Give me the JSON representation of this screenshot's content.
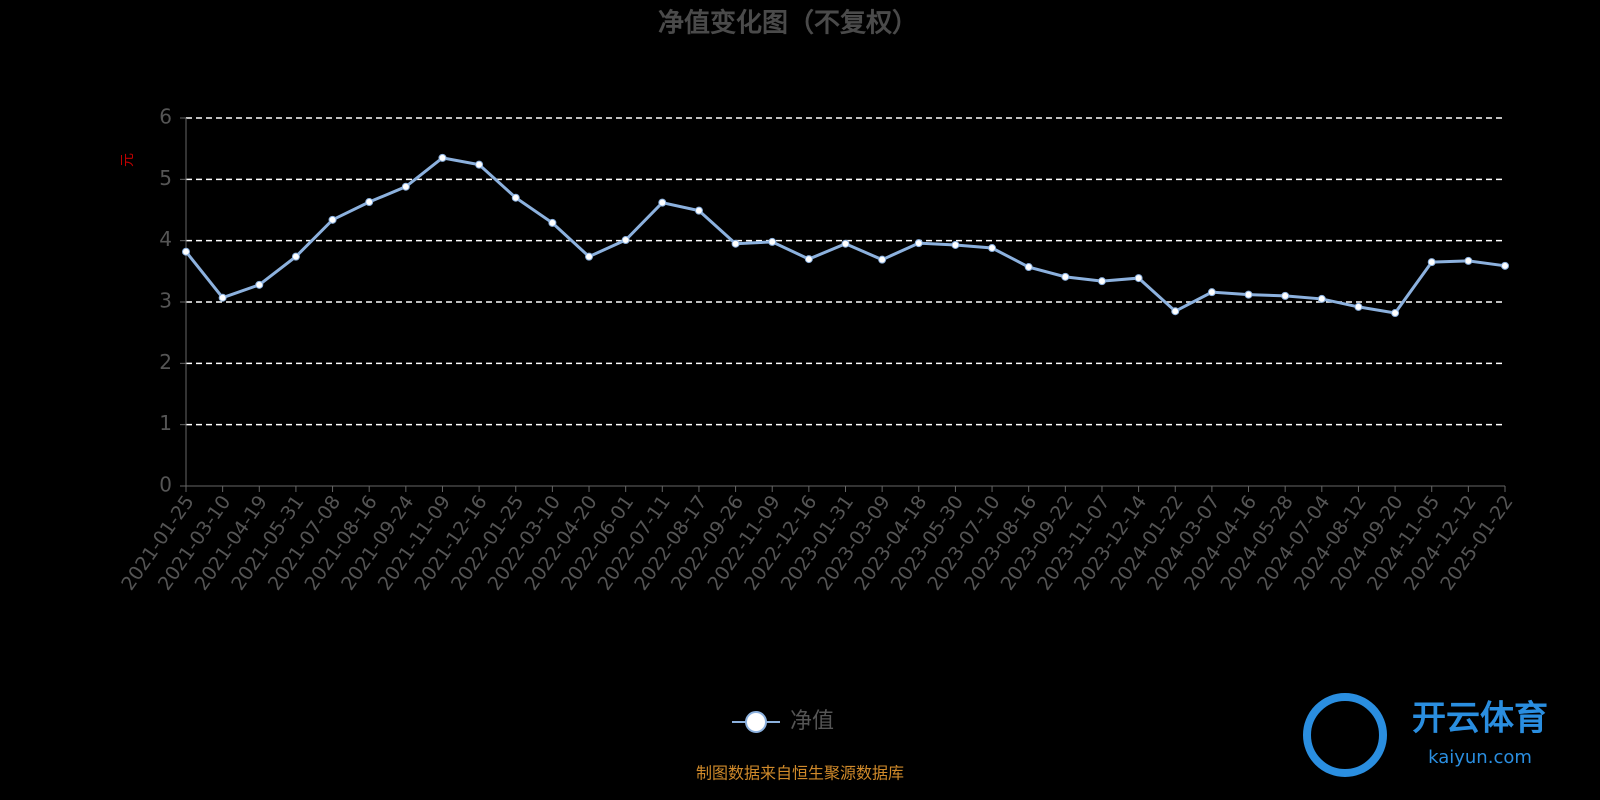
{
  "chart_data": {
    "type": "line",
    "title": "净值变化图（不复权）",
    "y_label": "元",
    "categories": [
      "2021-01-25",
      "2021-03-10",
      "2021-04-19",
      "2021-05-31",
      "2021-07-08",
      "2021-08-16",
      "2021-09-24",
      "2021-11-09",
      "2021-12-16",
      "2022-01-25",
      "2022-03-10",
      "2022-04-20",
      "2022-06-01",
      "2022-07-11",
      "2022-08-17",
      "2022-09-26",
      "2022-11-09",
      "2022-12-16",
      "2023-01-31",
      "2023-03-09",
      "2023-04-18",
      "2023-05-30",
      "2023-07-10",
      "2023-08-16",
      "2023-09-22",
      "2023-11-07",
      "2023-12-14",
      "2024-01-22",
      "2024-03-07",
      "2024-04-16",
      "2024-05-28",
      "2024-07-04",
      "2024-08-12",
      "2024-09-20",
      "2024-11-05",
      "2024-12-12",
      "2025-01-22"
    ],
    "series": [
      {
        "name": "净值",
        "color": "#8cb1de",
        "values": [
          3.82,
          3.07,
          3.28,
          3.74,
          4.34,
          4.63,
          4.88,
          5.35,
          5.24,
          4.7,
          4.29,
          3.74,
          4.01,
          4.62,
          4.49,
          3.95,
          3.98,
          3.7,
          3.95,
          3.69,
          3.96,
          3.93,
          3.88,
          3.57,
          3.41,
          3.34,
          3.39,
          2.85,
          3.16,
          3.12,
          3.1,
          3.05,
          2.92,
          2.82,
          3.65,
          3.67,
          3.59
        ]
      }
    ],
    "ylim": [
      0,
      6
    ],
    "yticks": [
      0,
      1,
      2,
      3,
      4,
      5,
      6
    ],
    "grid": true,
    "source": "制图数据来自恒生聚源数据库",
    "watermark": [
      "开云体育",
      "kaiyun.com"
    ]
  }
}
